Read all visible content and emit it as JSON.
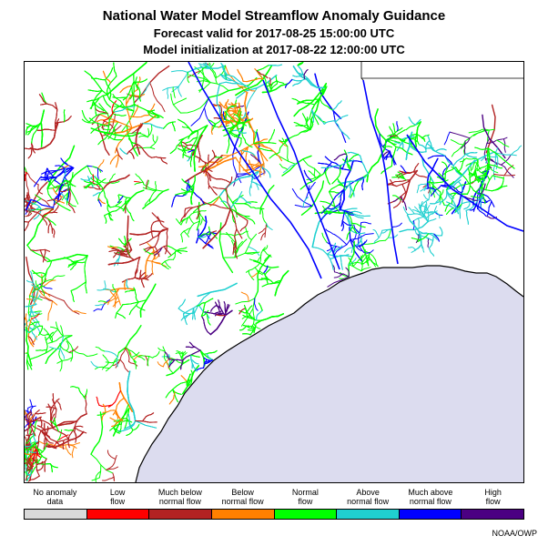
{
  "header": {
    "title": "National Water Model Streamflow Anomaly Guidance",
    "forecast_line": "Forecast valid for 2017-08-25 15:00:00 UTC",
    "init_line": "Model initialization at 2017-08-22 12:00:00 UTC"
  },
  "map": {
    "land_color": "#ffffff",
    "water_color": "#dcdcef",
    "coastline_color": "#000000"
  },
  "legend": {
    "items": [
      {
        "line1": "No anomaly",
        "line2": "data",
        "color": "#d9d9d9"
      },
      {
        "line1": "Low",
        "line2": "flow",
        "color": "#ff0000"
      },
      {
        "line1": "Much below",
        "line2": "normal flow",
        "color": "#b22222"
      },
      {
        "line1": "Below",
        "line2": "normal flow",
        "color": "#ff8000"
      },
      {
        "line1": "Normal",
        "line2": "flow",
        "color": "#00ff00"
      },
      {
        "line1": "Above",
        "line2": "normal flow",
        "color": "#20d0d0"
      },
      {
        "line1": "Much above",
        "line2": "normal flow",
        "color": "#0000ff"
      },
      {
        "line1": "High",
        "line2": "flow",
        "color": "#4b0082"
      }
    ]
  },
  "credit": "NOAA/OWP"
}
